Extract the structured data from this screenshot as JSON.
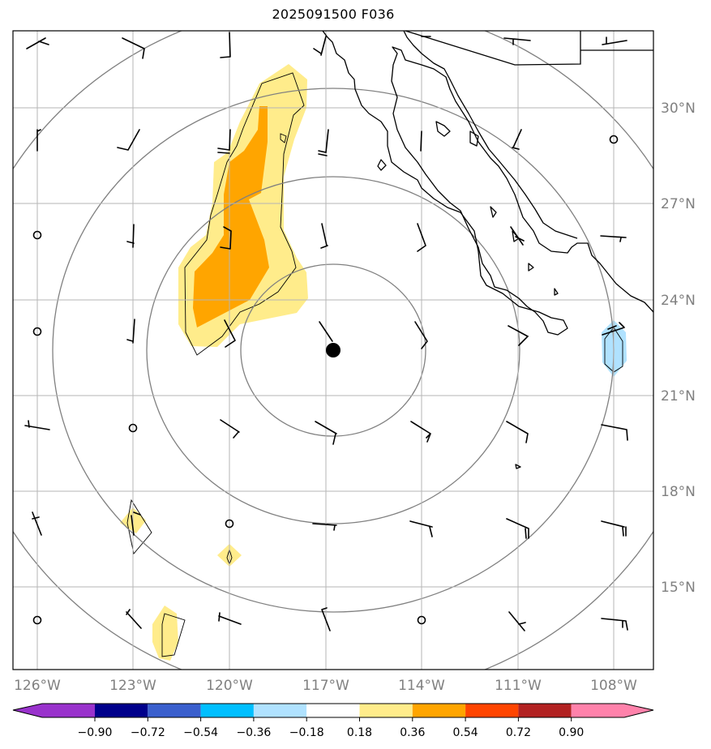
{
  "title": "2025091500 F036",
  "map": {
    "lon_range": [
      -127,
      -106.5
    ],
    "lat_range": [
      12.8,
      32.5
    ],
    "center": {
      "lon": -116.8,
      "lat": 22.4
    },
    "range_ring_radii_deg": [
      3,
      6,
      9,
      12
    ]
  },
  "axes": {
    "lon_ticks": [
      {
        "value": -126,
        "label": "126°W"
      },
      {
        "value": -123,
        "label": "123°W"
      },
      {
        "value": -120,
        "label": "120°W"
      },
      {
        "value": -117,
        "label": "117°W"
      },
      {
        "value": -114,
        "label": "114°W"
      },
      {
        "value": -111,
        "label": "111°W"
      },
      {
        "value": -108,
        "label": "108°W"
      }
    ],
    "lat_ticks": [
      {
        "value": 30,
        "label": "30°N"
      },
      {
        "value": 27,
        "label": "27°N"
      },
      {
        "value": 24,
        "label": "24°N"
      },
      {
        "value": 21,
        "label": "21°N"
      },
      {
        "value": 18,
        "label": "18°N"
      },
      {
        "value": 15,
        "label": "15°N"
      }
    ]
  },
  "colorbar": {
    "colors": [
      "#9932cc",
      "#00008b",
      "#3a5fcd",
      "#00bfff",
      "#b0e2ff",
      "#ffffff",
      "#ffec8b",
      "#ffa500",
      "#ff4500",
      "#b22222",
      "#ff82ab"
    ],
    "labels": [
      "−0.90",
      "−0.72",
      "−0.54",
      "−0.36",
      "−0.18",
      "0.18",
      "0.36",
      "0.54",
      "0.72",
      "0.90"
    ]
  },
  "shading": {
    "light_yellow": "#ffec8b",
    "orange": "#ffa500",
    "light_blue": "#b0e2ff"
  }
}
